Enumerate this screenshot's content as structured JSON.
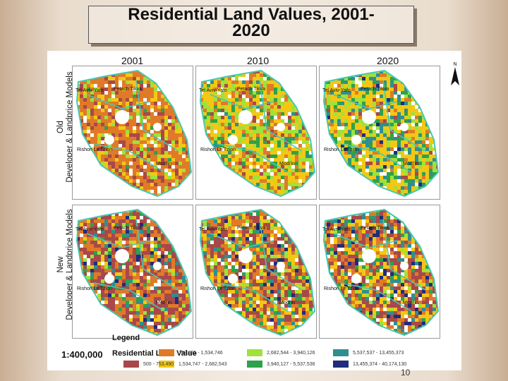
{
  "title": {
    "line1": "Residential Land Values, 2001-",
    "line2": "2020"
  },
  "years": [
    "2001",
    "2010",
    "2020"
  ],
  "rows": [
    {
      "line1": "Old",
      "line2": "Developer & Landprice Models"
    },
    {
      "line1": "New",
      "line2": "Developer & Landprice Models"
    }
  ],
  "places": {
    "tel_aviv": "Tel Aviv-Yafo",
    "petach": "Petach Tikva",
    "rishon": "Rishon Le'Tzion",
    "modiin": "Modi'in"
  },
  "north": "N",
  "legend": {
    "title": "Legend",
    "scale": "1:400,000",
    "subtitle": "Residential Land Value",
    "classes": [
      {
        "label": "500 - 753,490",
        "color": "#a8484a"
      },
      {
        "label": "753,491 - 1,534,746",
        "color": "#e07a28"
      },
      {
        "label": "1,534,747 - 2,682,543",
        "color": "#f2c814"
      },
      {
        "label": "2,682,544 - 3,940,126",
        "color": "#9ee23a"
      },
      {
        "label": "3,940,127 - 5,537,536",
        "color": "#2ea24a"
      },
      {
        "label": "5,537,537 - 13,455,373",
        "color": "#2f8f8f"
      },
      {
        "label": "13,455,374 - 40,174,130",
        "color": "#1f2d7a"
      }
    ]
  },
  "page_number": "10"
}
